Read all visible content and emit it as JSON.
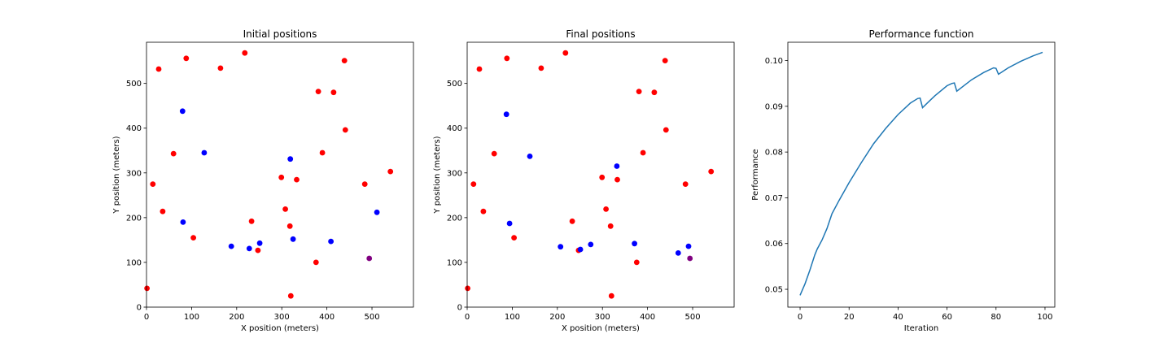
{
  "chart_data": [
    {
      "type": "scatter",
      "title": "Initial positions",
      "xlabel": "X position (meters)",
      "ylabel": "Y position (meters)",
      "xlim": [
        0,
        592
      ],
      "ylim": [
        0,
        592
      ],
      "xticks": [
        0,
        100,
        200,
        300,
        400,
        500
      ],
      "yticks": [
        0,
        100,
        200,
        300,
        400,
        500
      ],
      "grid": false,
      "series": [
        {
          "color": "#ff0000",
          "points": [
            [
              1,
              42
            ],
            [
              14,
              275
            ],
            [
              27,
              532
            ],
            [
              36,
              214
            ],
            [
              60,
              343
            ],
            [
              88,
              556
            ],
            [
              104,
              155
            ],
            [
              164,
              534
            ],
            [
              218,
              568
            ],
            [
              233,
              192
            ],
            [
              247,
              127
            ],
            [
              299,
              290
            ],
            [
              308,
              219
            ],
            [
              318,
              181
            ],
            [
              320,
              25
            ],
            [
              333,
              285
            ],
            [
              376,
              100
            ],
            [
              381,
              482
            ],
            [
              390,
              345
            ],
            [
              415,
              480
            ],
            [
              439,
              551
            ],
            [
              441,
              396
            ],
            [
              484,
              275
            ],
            [
              541,
              303
            ]
          ]
        },
        {
          "color": "#0000ff",
          "points": [
            [
              80,
              438
            ],
            [
              81,
              190
            ],
            [
              128,
              345
            ],
            [
              188,
              136
            ],
            [
              228,
              131
            ],
            [
              251,
              143
            ],
            [
              319,
              331
            ],
            [
              325,
              152
            ],
            [
              409,
              147
            ],
            [
              511,
              212
            ]
          ]
        },
        {
          "color": "#800080",
          "points": [
            [
              494,
              109
            ]
          ]
        }
      ]
    },
    {
      "type": "scatter",
      "title": "Final positions",
      "xlabel": "X position (meters)",
      "ylabel": "Y position (meters)",
      "xlim": [
        0,
        592
      ],
      "ylim": [
        0,
        592
      ],
      "xticks": [
        0,
        100,
        200,
        300,
        400,
        500
      ],
      "yticks": [
        0,
        100,
        200,
        300,
        400,
        500
      ],
      "grid": false,
      "series": [
        {
          "color": "#ff0000",
          "points": [
            [
              1,
              42
            ],
            [
              14,
              275
            ],
            [
              27,
              532
            ],
            [
              36,
              214
            ],
            [
              60,
              343
            ],
            [
              88,
              556
            ],
            [
              104,
              155
            ],
            [
              164,
              534
            ],
            [
              218,
              568
            ],
            [
              233,
              192
            ],
            [
              247,
              127
            ],
            [
              299,
              290
            ],
            [
              308,
              219
            ],
            [
              318,
              181
            ],
            [
              320,
              25
            ],
            [
              333,
              285
            ],
            [
              376,
              100
            ],
            [
              381,
              482
            ],
            [
              390,
              345
            ],
            [
              415,
              480
            ],
            [
              439,
              551
            ],
            [
              441,
              396
            ],
            [
              484,
              275
            ],
            [
              541,
              303
            ]
          ]
        },
        {
          "color": "#0000ff",
          "points": [
            [
              87,
              431
            ],
            [
              94,
              187
            ],
            [
              139,
              337
            ],
            [
              207,
              135
            ],
            [
              251,
              129
            ],
            [
              274,
              140
            ],
            [
              332,
              315
            ],
            [
              371,
              142
            ],
            [
              468,
              121
            ],
            [
              491,
              136
            ]
          ]
        },
        {
          "color": "#800080",
          "points": [
            [
              494,
              109
            ]
          ]
        }
      ]
    },
    {
      "type": "line",
      "title": "Performance function",
      "xlabel": "Iteration",
      "ylabel": "Performance",
      "xlim": [
        -5,
        104
      ],
      "ylim": [
        0.0461,
        0.104
      ],
      "xticks": [
        0,
        20,
        40,
        60,
        80,
        100
      ],
      "yticks": [
        0.05,
        0.06,
        0.07,
        0.08,
        0.09,
        0.1
      ],
      "grid": false,
      "series": [
        {
          "color": "#1f77b4",
          "x": [
            0,
            2,
            4,
            6,
            7,
            9,
            11,
            13,
            16,
            20,
            25,
            30,
            35,
            40,
            45,
            48,
            49,
            50,
            55,
            60,
            62,
            63,
            64,
            70,
            75,
            79,
            80,
            81,
            85,
            90,
            95,
            99
          ],
          "y": [
            0.0487,
            0.0512,
            0.0542,
            0.0575,
            0.0588,
            0.0608,
            0.0633,
            0.0665,
            0.0695,
            0.0733,
            0.0777,
            0.0818,
            0.0852,
            0.0882,
            0.0907,
            0.0917,
            0.0918,
            0.0897,
            0.0923,
            0.0945,
            0.095,
            0.0951,
            0.0933,
            0.0958,
            0.0974,
            0.0984,
            0.0983,
            0.097,
            0.0984,
            0.0998,
            0.101,
            0.1018
          ]
        }
      ]
    }
  ]
}
